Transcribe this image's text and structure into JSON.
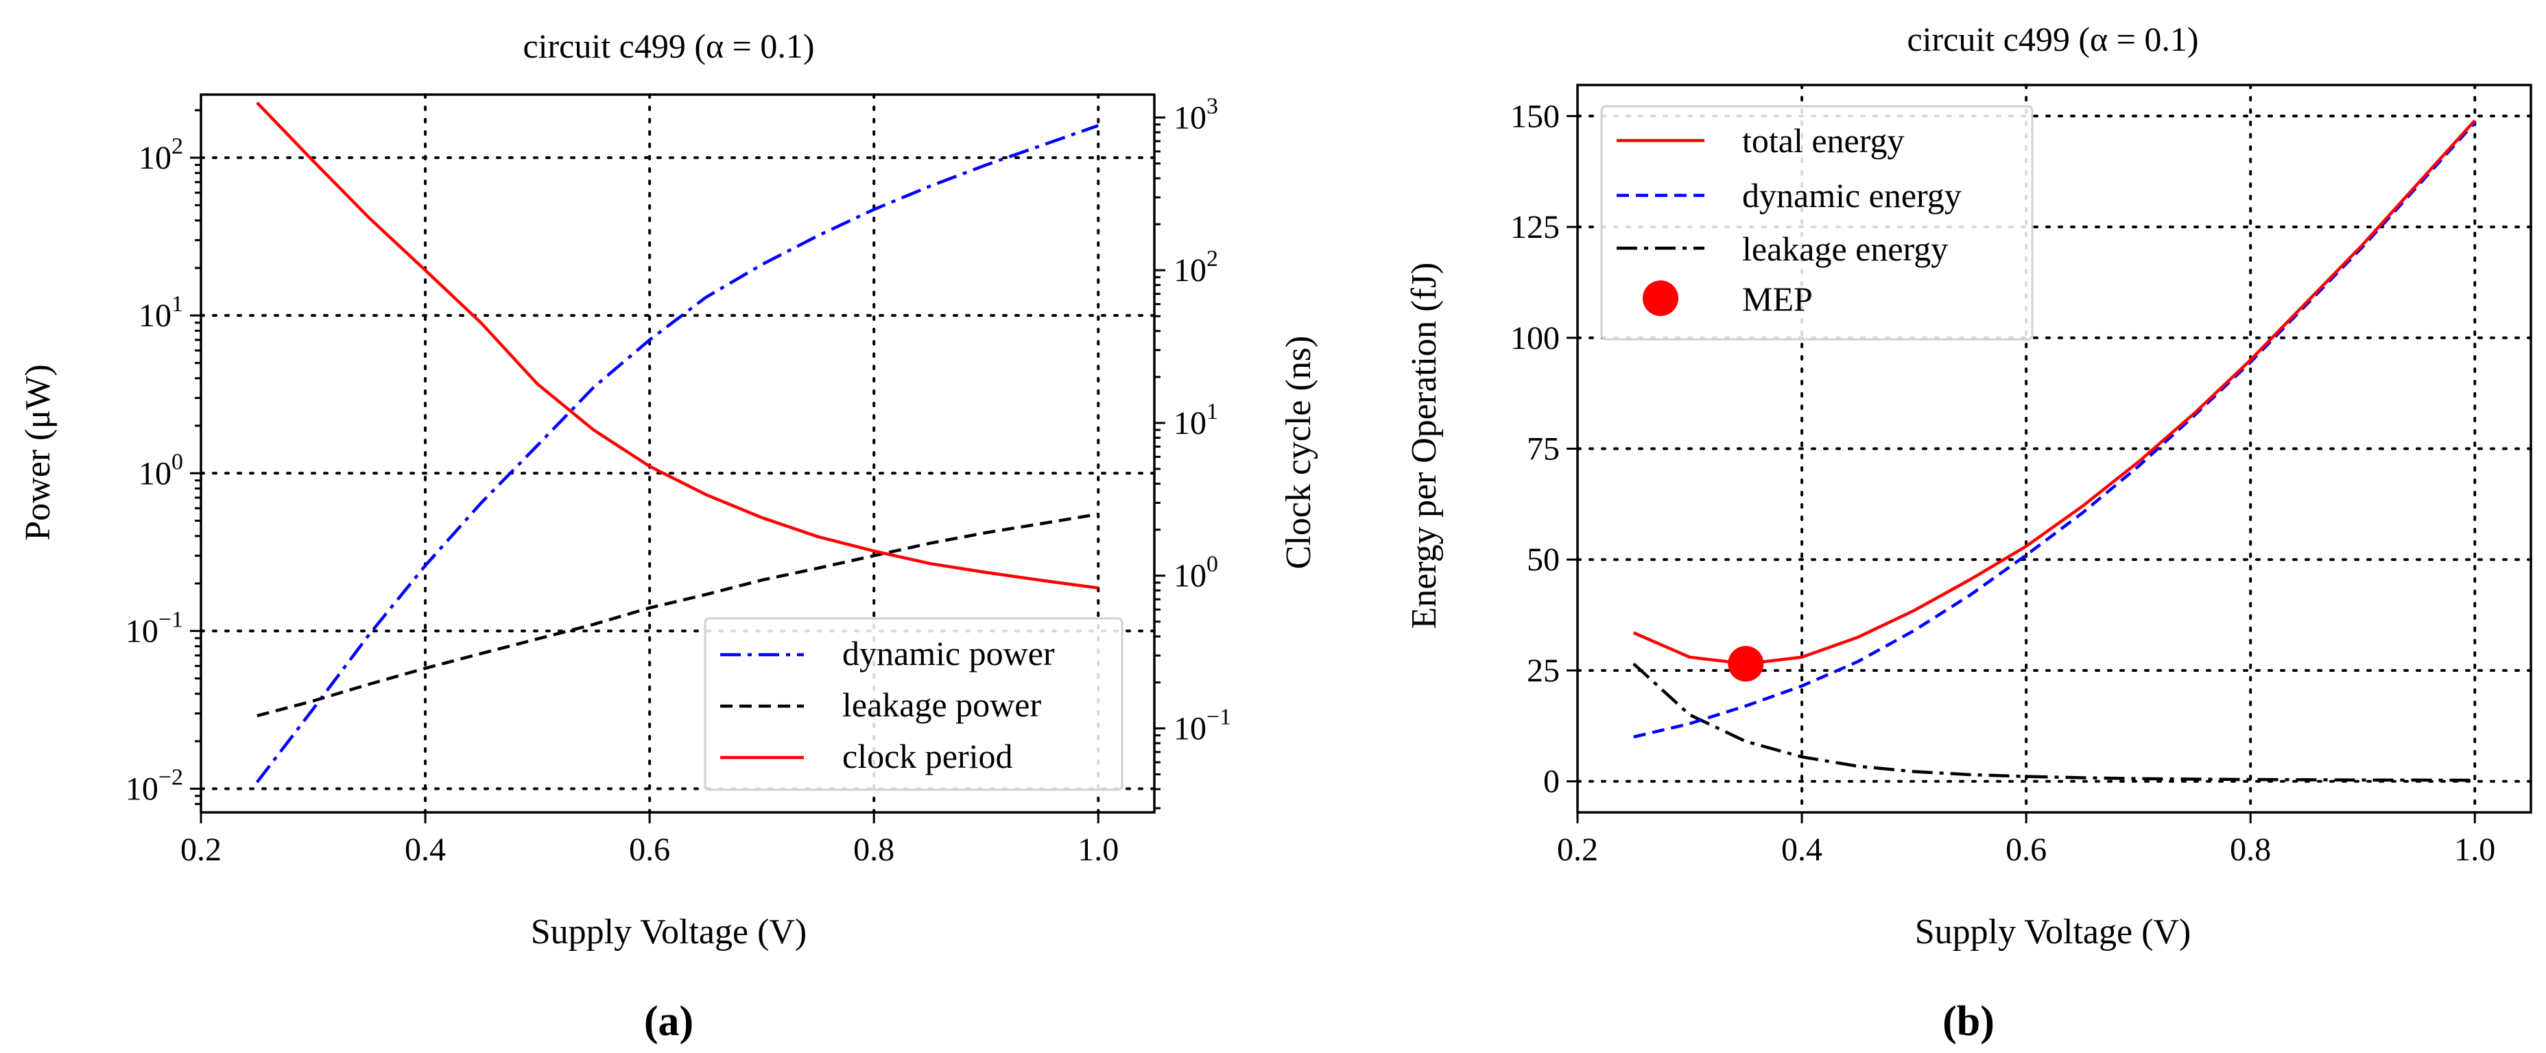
{
  "chart_data": [
    {
      "type": "line",
      "panel_label": "(a)",
      "title": "circuit c499 (α = 0.1)",
      "xlabel": "Supply Voltage (V)",
      "ylabel": "Power (μW)",
      "ylabel_right": "Clock cycle (ns)",
      "xlim": [
        0.2,
        1.05
      ],
      "ylim_log10": [
        -2.15,
        2.4
      ],
      "ylim_right_log10": [
        -1.55,
        3.15
      ],
      "xticks": [
        "0.2",
        "0.4",
        "0.6",
        "0.8",
        "1.0"
      ],
      "xtick_values": [
        0.2,
        0.4,
        0.6,
        0.8,
        1.0
      ],
      "yticks": [
        {
          "base": "10",
          "exp": "−2",
          "v": -2
        },
        {
          "base": "10",
          "exp": "−1",
          "v": -1
        },
        {
          "base": "10",
          "exp": "0",
          "v": 0
        },
        {
          "base": "10",
          "exp": "1",
          "v": 1
        },
        {
          "base": "10",
          "exp": "2",
          "v": 2
        }
      ],
      "yticks_right": [
        {
          "base": "10",
          "exp": "−1",
          "v": -1
        },
        {
          "base": "10",
          "exp": "0",
          "v": 0
        },
        {
          "base": "10",
          "exp": "1",
          "v": 1
        },
        {
          "base": "10",
          "exp": "2",
          "v": 2
        },
        {
          "base": "10",
          "exp": "3",
          "v": 3
        }
      ],
      "legend_position": "lower right",
      "series": [
        {
          "name": "dynamic power",
          "axis": "left",
          "color": "#0000ff",
          "style": "dashdot",
          "x": [
            0.25,
            0.3,
            0.35,
            0.4,
            0.45,
            0.5,
            0.55,
            0.6,
            0.65,
            0.7,
            0.75,
            0.8,
            0.85,
            0.9,
            0.95,
            1.0
          ],
          "values": [
            0.011,
            0.032,
            0.095,
            0.26,
            0.65,
            1.5,
            3.5,
            7.0,
            13,
            21,
            32,
            47,
            66,
            90,
            120,
            160
          ]
        },
        {
          "name": "leakage power",
          "axis": "left",
          "color": "#000000",
          "style": "dashed",
          "x": [
            0.25,
            0.3,
            0.35,
            0.4,
            0.45,
            0.5,
            0.55,
            0.6,
            0.65,
            0.7,
            0.75,
            0.8,
            0.85,
            0.9,
            0.95,
            1.0
          ],
          "values": [
            0.029,
            0.036,
            0.046,
            0.058,
            0.072,
            0.089,
            0.11,
            0.14,
            0.17,
            0.21,
            0.25,
            0.3,
            0.36,
            0.42,
            0.48,
            0.55
          ]
        },
        {
          "name": "clock period",
          "axis": "right",
          "color": "#ff0000",
          "style": "solid",
          "x": [
            0.25,
            0.3,
            0.35,
            0.4,
            0.45,
            0.5,
            0.55,
            0.6,
            0.65,
            0.7,
            0.75,
            0.8,
            0.85,
            0.9,
            0.95,
            1.0
          ],
          "values": [
            1250,
            520,
            220,
            100,
            45,
            18,
            9.0,
            5.2,
            3.4,
            2.4,
            1.8,
            1.45,
            1.2,
            1.05,
            0.93,
            0.83
          ]
        }
      ]
    },
    {
      "type": "line",
      "panel_label": "(b)",
      "title": "circuit c499 (α = 0.1)",
      "xlabel": "Supply Voltage (V)",
      "ylabel": "Energy per Operation (fJ)",
      "xlim": [
        0.2,
        1.05
      ],
      "ylim": [
        -7,
        157
      ],
      "xticks": [
        "0.2",
        "0.4",
        "0.6",
        "0.8",
        "1.0"
      ],
      "xtick_values": [
        0.2,
        0.4,
        0.6,
        0.8,
        1.0
      ],
      "yticks": [
        "0",
        "25",
        "50",
        "75",
        "100",
        "125",
        "150"
      ],
      "ytick_values": [
        0,
        25,
        50,
        75,
        100,
        125,
        150
      ],
      "legend_position": "upper left",
      "series": [
        {
          "name": "total energy",
          "color": "#ff0000",
          "style": "solid",
          "x": [
            0.25,
            0.3,
            0.35,
            0.4,
            0.45,
            0.5,
            0.55,
            0.6,
            0.65,
            0.7,
            0.75,
            0.8,
            0.85,
            0.9,
            0.95,
            1.0
          ],
          "values": [
            33.5,
            28,
            26.5,
            28,
            32.5,
            38.5,
            45.5,
            53,
            62,
            72,
            83,
            95,
            108,
            121,
            135,
            149
          ]
        },
        {
          "name": "dynamic energy",
          "color": "#0000ff",
          "style": "dashed",
          "x": [
            0.25,
            0.3,
            0.35,
            0.4,
            0.45,
            0.5,
            0.55,
            0.6,
            0.65,
            0.7,
            0.75,
            0.8,
            0.85,
            0.9,
            0.95,
            1.0
          ],
          "values": [
            10,
            13,
            17,
            21.5,
            27,
            34,
            42,
            51,
            60.5,
            71,
            82.5,
            94.5,
            107.5,
            120.5,
            134.5,
            148.5
          ]
        },
        {
          "name": "leakage energy",
          "color": "#000000",
          "style": "dashdot",
          "x": [
            0.25,
            0.3,
            0.35,
            0.4,
            0.45,
            0.5,
            0.55,
            0.6,
            0.65,
            0.7,
            0.75,
            0.8,
            0.85,
            0.9,
            0.95,
            1.0
          ],
          "values": [
            26.5,
            15,
            9,
            5.5,
            3.4,
            2.2,
            1.5,
            1.1,
            0.8,
            0.6,
            0.5,
            0.4,
            0.35,
            0.3,
            0.28,
            0.25
          ]
        }
      ],
      "markers": [
        {
          "name": "MEP",
          "color": "#ff0000",
          "x": 0.35,
          "y": 26.5
        }
      ]
    }
  ]
}
